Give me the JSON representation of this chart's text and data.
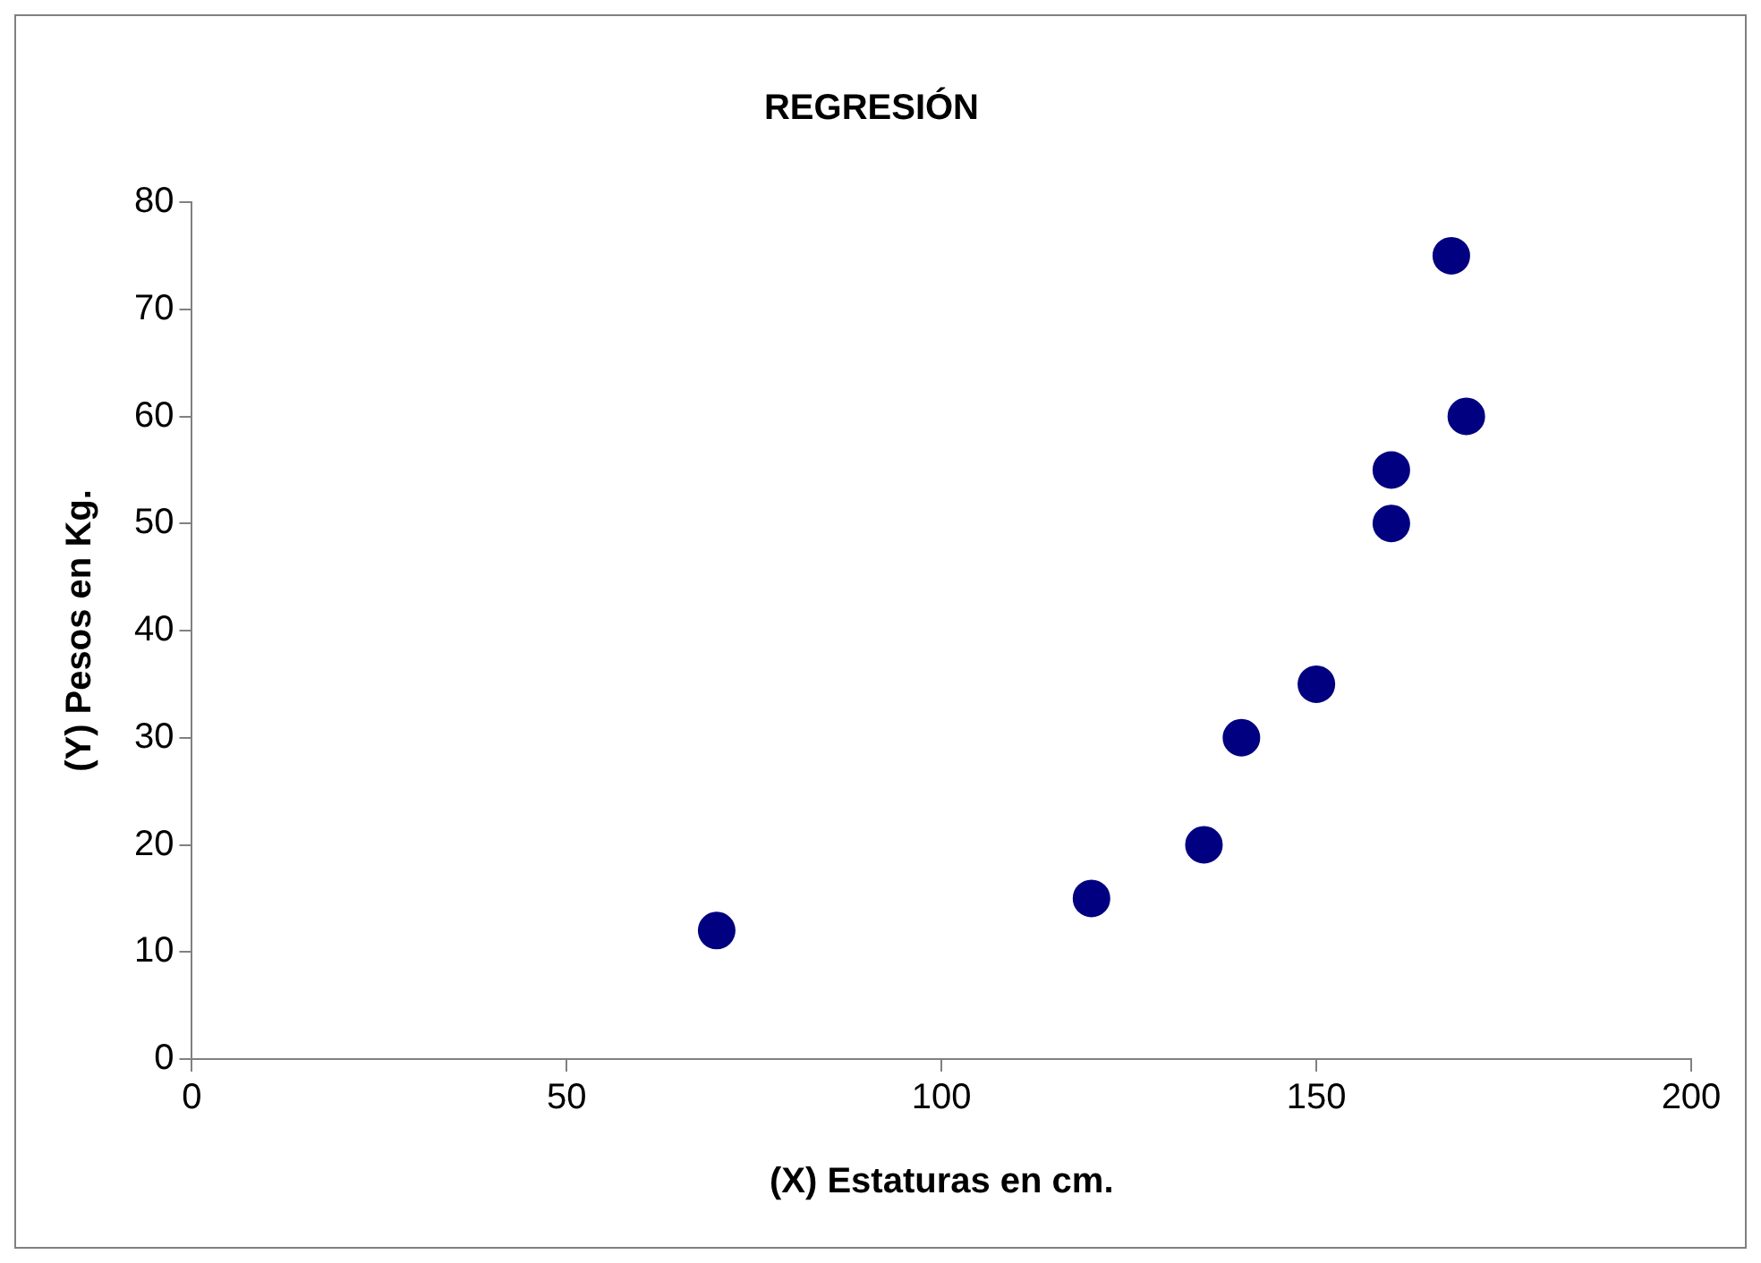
{
  "chart_data": {
    "type": "scatter",
    "title": "REGRESIÓN",
    "xlabel": "(X) Estaturas en cm.",
    "ylabel": "(Y) Pesos en Kg.",
    "x": [
      70,
      120,
      135,
      140,
      150,
      160,
      160,
      168,
      170
    ],
    "series": [
      {
        "color": "#000080",
        "values": [
          12,
          15,
          20,
          30,
          35,
          55,
          50,
          75,
          60
        ]
      }
    ],
    "xlim": [
      0,
      200
    ],
    "xticks": [
      0,
      50,
      100,
      150,
      200
    ],
    "ylim": [
      0,
      80
    ],
    "yticks": [
      0,
      10,
      20,
      30,
      40,
      50,
      60,
      70,
      80
    ],
    "grid": false,
    "legend": false,
    "marker": "circle"
  }
}
